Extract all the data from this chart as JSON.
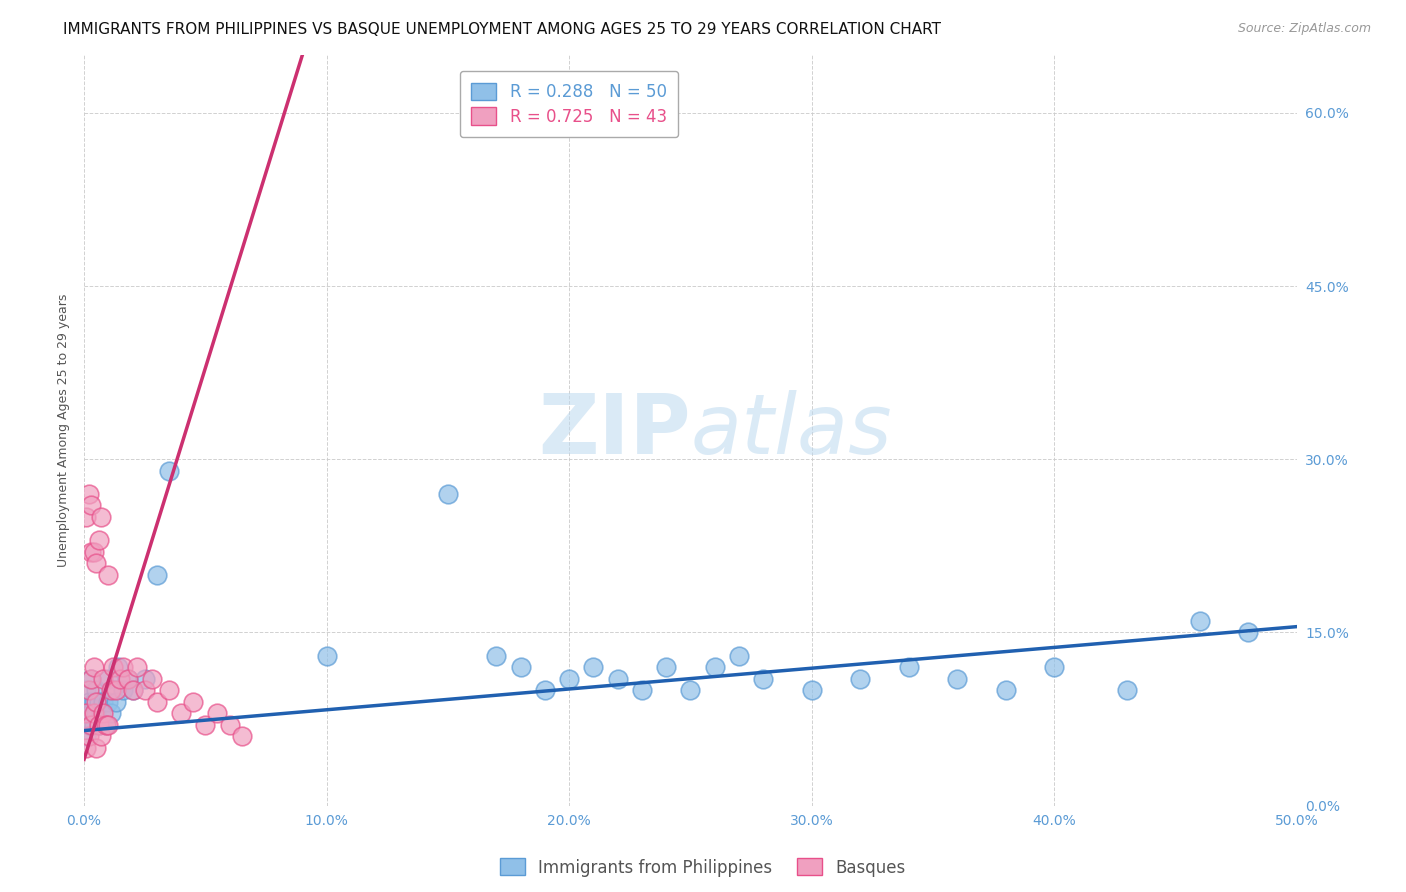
{
  "title": "IMMIGRANTS FROM PHILIPPINES VS BASQUE UNEMPLOYMENT AMONG AGES 25 TO 29 YEARS CORRELATION CHART",
  "source": "Source: ZipAtlas.com",
  "ylabel": "Unemployment Among Ages 25 to 29 years",
  "xlabel_ticks": [
    "0.0%",
    "10.0%",
    "20.0%",
    "30.0%",
    "40.0%",
    "50.0%"
  ],
  "ylabel_ticks": [
    "0.0%",
    "15.0%",
    "30.0%",
    "45.0%",
    "60.0%"
  ],
  "xlim": [
    0.0,
    0.5
  ],
  "ylim": [
    0.0,
    0.65
  ],
  "legend_entries": [
    {
      "label": "R = 0.288   N = 50",
      "color": "#5b9bd5"
    },
    {
      "label": "R = 0.725   N = 43",
      "color": "#e8508a"
    }
  ],
  "watermark_zip": "ZIP",
  "watermark_atlas": "atlas",
  "blue_scatter_x": [
    0.001,
    0.001,
    0.002,
    0.002,
    0.003,
    0.003,
    0.004,
    0.004,
    0.005,
    0.005,
    0.006,
    0.006,
    0.007,
    0.008,
    0.009,
    0.01,
    0.01,
    0.011,
    0.012,
    0.013,
    0.014,
    0.016,
    0.018,
    0.02,
    0.025,
    0.03,
    0.035,
    0.1,
    0.15,
    0.17,
    0.18,
    0.19,
    0.2,
    0.21,
    0.22,
    0.23,
    0.24,
    0.25,
    0.26,
    0.27,
    0.28,
    0.3,
    0.32,
    0.34,
    0.36,
    0.38,
    0.4,
    0.43,
    0.46,
    0.48
  ],
  "blue_scatter_y": [
    0.06,
    0.1,
    0.07,
    0.09,
    0.08,
    0.11,
    0.07,
    0.09,
    0.08,
    0.1,
    0.07,
    0.09,
    0.08,
    0.09,
    0.07,
    0.09,
    0.11,
    0.08,
    0.1,
    0.09,
    0.12,
    0.1,
    0.11,
    0.1,
    0.11,
    0.2,
    0.29,
    0.13,
    0.27,
    0.13,
    0.12,
    0.1,
    0.11,
    0.12,
    0.11,
    0.1,
    0.12,
    0.1,
    0.12,
    0.13,
    0.11,
    0.1,
    0.11,
    0.12,
    0.11,
    0.1,
    0.12,
    0.1,
    0.16,
    0.15
  ],
  "pink_scatter_x": [
    0.001,
    0.001,
    0.001,
    0.002,
    0.002,
    0.002,
    0.003,
    0.003,
    0.003,
    0.003,
    0.004,
    0.004,
    0.004,
    0.005,
    0.005,
    0.005,
    0.006,
    0.006,
    0.007,
    0.007,
    0.008,
    0.008,
    0.009,
    0.01,
    0.01,
    0.011,
    0.012,
    0.013,
    0.015,
    0.016,
    0.018,
    0.02,
    0.022,
    0.025,
    0.028,
    0.03,
    0.035,
    0.04,
    0.045,
    0.05,
    0.055,
    0.06,
    0.065
  ],
  "pink_scatter_y": [
    0.05,
    0.08,
    0.25,
    0.06,
    0.1,
    0.27,
    0.07,
    0.11,
    0.22,
    0.26,
    0.08,
    0.12,
    0.22,
    0.05,
    0.09,
    0.21,
    0.07,
    0.23,
    0.06,
    0.25,
    0.08,
    0.11,
    0.07,
    0.07,
    0.2,
    0.1,
    0.12,
    0.1,
    0.11,
    0.12,
    0.11,
    0.1,
    0.12,
    0.1,
    0.11,
    0.09,
    0.1,
    0.08,
    0.09,
    0.07,
    0.08,
    0.07,
    0.06
  ],
  "blue_line_x": [
    0.0,
    0.5
  ],
  "blue_line_y": [
    0.065,
    0.155
  ],
  "pink_line_x": [
    0.0,
    0.09
  ],
  "pink_line_y": [
    0.04,
    0.65
  ],
  "blue_color": "#90c0e8",
  "pink_color": "#f0a0c0",
  "blue_scatter_edge": "#5b9bd5",
  "pink_scatter_edge": "#e8508a",
  "blue_line_color": "#2060b0",
  "pink_line_color": "#cc3070",
  "grid_color": "#cccccc",
  "background_color": "#ffffff",
  "title_fontsize": 11,
  "source_fontsize": 9,
  "label_fontsize": 9,
  "tick_fontsize": 10,
  "legend_fontsize": 12
}
